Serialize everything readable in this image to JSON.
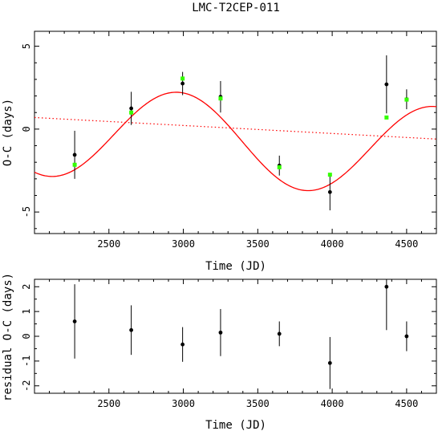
{
  "chart_data": [
    {
      "type": "scatter",
      "title": "LMC-T2CEP-011",
      "xlabel": "Time (JD)",
      "ylabel": "O-C (days)",
      "xlim": [
        2000,
        4700
      ],
      "ylim": [
        -6.3,
        5.9
      ],
      "xticks": [
        2500,
        3000,
        3500,
        4000,
        4500
      ],
      "yticks": [
        -5,
        0,
        5
      ],
      "observed": {
        "color": "#000000",
        "x": [
          2270,
          2650,
          2995,
          3250,
          3645,
          3985,
          4365,
          4500
        ],
        "y": [
          -1.55,
          1.25,
          2.75,
          1.95,
          -2.2,
          -3.8,
          2.7,
          1.8
        ],
        "err": [
          1.45,
          1.0,
          0.7,
          0.95,
          0.6,
          1.1,
          1.75,
          0.6
        ]
      },
      "model_points": {
        "color": "#33ff00",
        "x": [
          2270,
          2650,
          2995,
          3250,
          3645,
          3985,
          4365,
          4500
        ],
        "y": [
          -2.15,
          1.0,
          3.05,
          1.85,
          -2.3,
          -2.75,
          0.7,
          1.78
        ]
      },
      "sine_fit": {
        "color": "#ff0000",
        "offset": -0.05,
        "slope": -0.000497,
        "x_ref": 2000,
        "amplitude": 2.75,
        "period": 1720,
        "phase_peak_x": 2965
      },
      "linear_trend": {
        "color": "#ff0000",
        "style": "dotted",
        "x": [
          2000,
          4700
        ],
        "y": [
          0.7,
          -0.6
        ]
      }
    },
    {
      "type": "scatter",
      "xlabel": "Time (JD)",
      "ylabel": "residual O-C (days)",
      "xlim": [
        2000,
        4700
      ],
      "ylim": [
        -2.3,
        2.3
      ],
      "xticks": [
        2500,
        3000,
        3500,
        4000,
        4500
      ],
      "yticks": [
        -2,
        -1,
        0,
        1,
        2
      ],
      "residuals": {
        "color": "#000000",
        "x": [
          2270,
          2650,
          2995,
          3250,
          3645,
          3985,
          4365,
          4500
        ],
        "y": [
          0.6,
          0.25,
          -0.33,
          0.15,
          0.1,
          -1.08,
          2.0,
          0.0
        ],
        "err": [
          1.5,
          1.0,
          0.7,
          0.95,
          0.5,
          1.05,
          1.75,
          0.6
        ]
      }
    }
  ]
}
